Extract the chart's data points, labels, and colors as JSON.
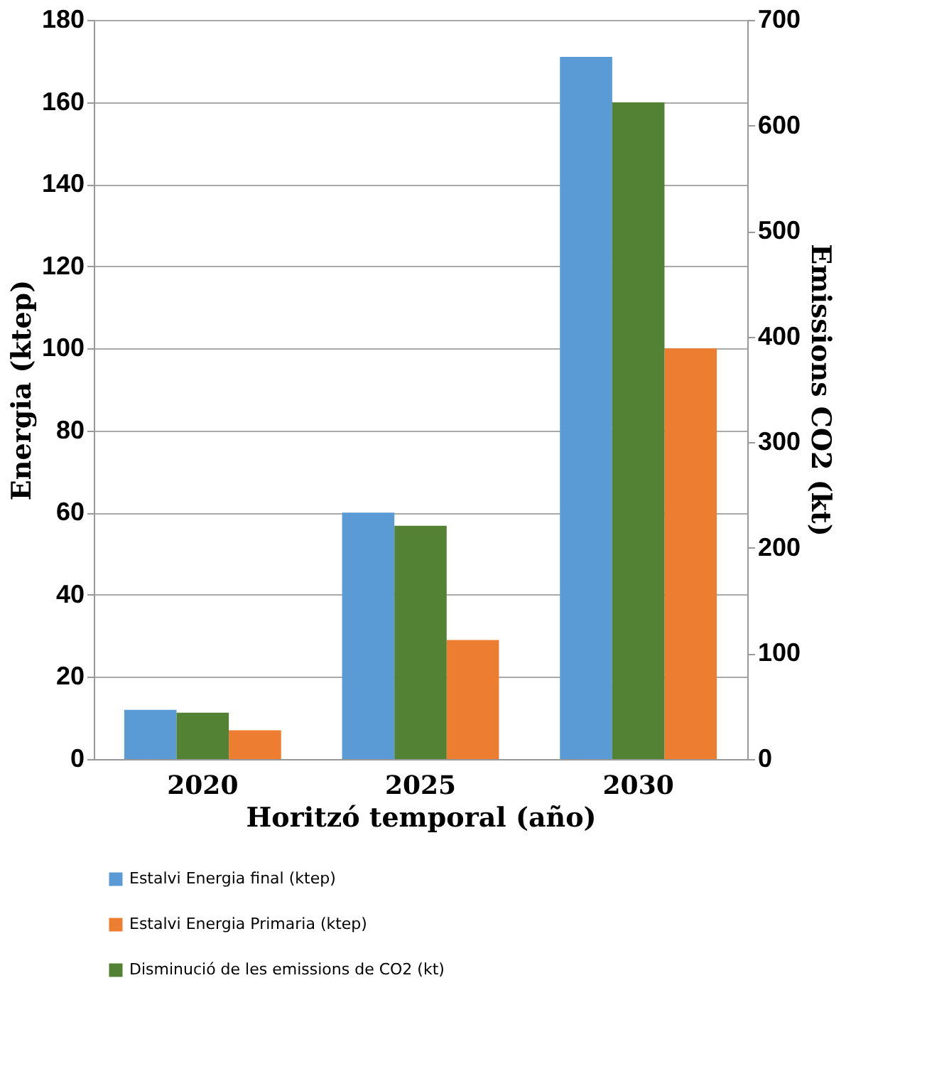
{
  "chart_data": {
    "type": "bar",
    "xlabel": "Horitzó temporal (año)",
    "ylabel": "Energia (ktep)",
    "y2label": "Emissions CO2 (kt)",
    "categories": [
      "2020",
      "2025",
      "2030"
    ],
    "series": [
      {
        "name": "Estalvi Energia final (ktep)",
        "color": "#5b9bd5",
        "values": [
          12,
          60,
          171
        ]
      },
      {
        "name": "Disminució de les emissions de CO2 (kt)",
        "color": "#548235",
        "values": [
          44,
          221,
          622
        ],
        "axis": "y2"
      },
      {
        "name": "Estalvi Energia Primaria (ktep)",
        "color": "#ed7d31",
        "values": [
          7,
          29,
          100
        ]
      }
    ],
    "ylim": [
      0,
      180
    ],
    "yticks": [
      0,
      20,
      40,
      60,
      80,
      100,
      120,
      140,
      160,
      180
    ],
    "y2lim": [
      0,
      700
    ],
    "y2ticks": [
      0,
      100,
      200,
      300,
      400,
      500,
      600,
      700
    ],
    "grid": "y",
    "legend": "bottom"
  }
}
